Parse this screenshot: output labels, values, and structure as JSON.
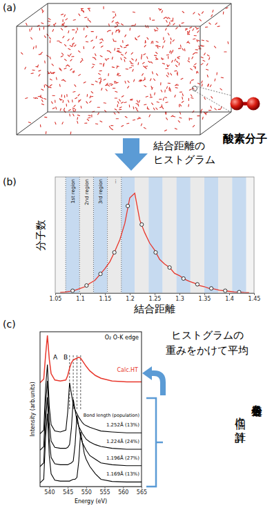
{
  "panels": {
    "a": "(a)",
    "b": "(b)",
    "c": "(c)"
  },
  "panel_a": {
    "molecule_label": "酸素分子"
  },
  "arrow_ab": {
    "lines": [
      "結合距離の",
      "ヒストグラム"
    ]
  },
  "arrow_c": {
    "lines": [
      "ヒストグラムの",
      "重みをかけて平均"
    ]
  },
  "bracket_c": {
    "lines": [
      "各分子構造を",
      "個々に計算"
    ]
  },
  "chart_data": [
    {
      "type": "line",
      "xlabel": "結合距離",
      "ylabel": "分子数",
      "xlim": [
        1.05,
        1.45
      ],
      "xticks": [
        1.05,
        1.1,
        1.15,
        1.2,
        1.25,
        1.3,
        1.35,
        1.4,
        1.45
      ],
      "ylim": [
        0,
        100
      ],
      "tick_labels": "x",
      "x": [
        1.06,
        1.07,
        1.08,
        1.09,
        1.1,
        1.11,
        1.12,
        1.13,
        1.14,
        1.15,
        1.16,
        1.17,
        1.18,
        1.19,
        1.2,
        1.21,
        1.22,
        1.23,
        1.24,
        1.25,
        1.26,
        1.27,
        1.28,
        1.29,
        1.3,
        1.31,
        1.32,
        1.33,
        1.34,
        1.35,
        1.36,
        1.37,
        1.38,
        1.39,
        1.4,
        1.41,
        1.42,
        1.43,
        1.44
      ],
      "series": [
        {
          "color": "#e8362b",
          "values": [
            0.5,
            0.8,
            1.5,
            2.5,
            4,
            5.5,
            8.5,
            11,
            16,
            21,
            27,
            36,
            46,
            60,
            82,
            86,
            63,
            52,
            43,
            37,
            29,
            25,
            22,
            17,
            15,
            12,
            10,
            8.5,
            6.5,
            5.5,
            4,
            3.5,
            2.5,
            2,
            1.5,
            1,
            0.8,
            0.5,
            0.3
          ]
        },
        {
          "type": "scatter",
          "marker": "circle",
          "color": "#ffffff",
          "x": [
            1.085,
            1.113,
            1.141,
            1.169,
            1.196,
            1.224,
            1.252,
            1.28,
            1.308,
            1.336,
            1.364,
            1.392,
            1.42
          ],
          "values": [
            2,
            6.5,
            16.5,
            35,
            75,
            59,
            35,
            22,
            12.5,
            7.5,
            4,
            2,
            0.8
          ]
        }
      ],
      "regions": {
        "labels": [
          "1st region",
          "2nd region",
          "3rd region",
          "..."
        ],
        "edges": [
          1.071,
          1.099,
          1.127,
          1.155,
          1.183,
          1.21,
          1.238,
          1.266,
          1.294,
          1.322,
          1.35,
          1.378,
          1.406,
          1.434
        ]
      }
    },
    {
      "type": "line",
      "title": "O₂ O-K edge",
      "xlabel": "Energy (eV)",
      "ylabel": "Intensity (arb.units)",
      "xlim": [
        537.5,
        565
      ],
      "xticks": [
        540,
        545,
        550,
        555,
        560,
        565
      ],
      "ylim": [
        0,
        8.5
      ],
      "tick_labels": "x",
      "label_heading": "Bond length (population)",
      "annotations": [
        "A",
        "B"
      ],
      "peak_lines": [
        545.5,
        546.5,
        547.5,
        548.5
      ],
      "x": [
        537.5,
        538.5,
        539,
        539.5,
        540,
        540.5,
        541.5,
        543,
        544.5,
        545,
        545.5,
        546,
        546.5,
        547,
        547.5,
        548,
        548.5,
        549,
        549.5,
        550,
        551,
        552.5,
        554,
        557,
        561,
        565
      ],
      "series": [
        {
          "name": "Calc.HT",
          "color": "#e8362b",
          "values": [
            5.7,
            5.9,
            7.2,
            8.3,
            7.0,
            6.2,
            5.85,
            5.8,
            5.85,
            6.1,
            6.5,
            6.8,
            6.95,
            7.0,
            7.05,
            7.1,
            7.05,
            6.9,
            6.75,
            6.6,
            6.35,
            6.1,
            5.95,
            5.8,
            5.75,
            5.75
          ]
        },
        {
          "name": "1.252Å (13%)",
          "color": "#000000",
          "values": [
            2.9,
            3.1,
            5.4,
            6.7,
            4.4,
            3.4,
            3.05,
            3.0,
            3.1,
            4.1,
            5.7,
            5.1,
            4.5,
            4.2,
            4.0,
            3.8,
            3.65,
            3.5,
            3.4,
            3.35,
            3.25,
            3.15,
            3.05,
            3.0,
            2.95,
            2.95
          ]
        },
        {
          "name": "1.224Å (24%)",
          "color": "#000000",
          "values": [
            2.0,
            2.2,
            4.5,
            5.8,
            3.5,
            2.5,
            2.15,
            2.1,
            2.1,
            2.15,
            2.3,
            3.2,
            4.8,
            4.2,
            3.6,
            3.3,
            3.1,
            2.9,
            2.75,
            2.6,
            2.45,
            2.3,
            2.2,
            2.1,
            2.05,
            2.05
          ]
        },
        {
          "name": "1.196Å (27%)",
          "color": "#000000",
          "values": [
            1.1,
            1.3,
            3.6,
            4.9,
            2.6,
            1.6,
            1.25,
            1.2,
            1.2,
            1.2,
            1.25,
            1.3,
            1.4,
            2.3,
            3.9,
            3.3,
            2.7,
            2.4,
            2.2,
            2.0,
            1.7,
            1.5,
            1.3,
            1.2,
            1.15,
            1.15
          ]
        },
        {
          "name": "1.169Å (13%)",
          "color": "#000000",
          "values": [
            0.2,
            0.4,
            2.7,
            4.0,
            1.7,
            0.7,
            0.35,
            0.3,
            0.3,
            0.3,
            0.3,
            0.35,
            0.4,
            0.4,
            0.5,
            1.4,
            3.0,
            2.4,
            1.8,
            1.5,
            1.1,
            0.7,
            0.4,
            0.28,
            0.25,
            0.25
          ]
        }
      ]
    }
  ]
}
